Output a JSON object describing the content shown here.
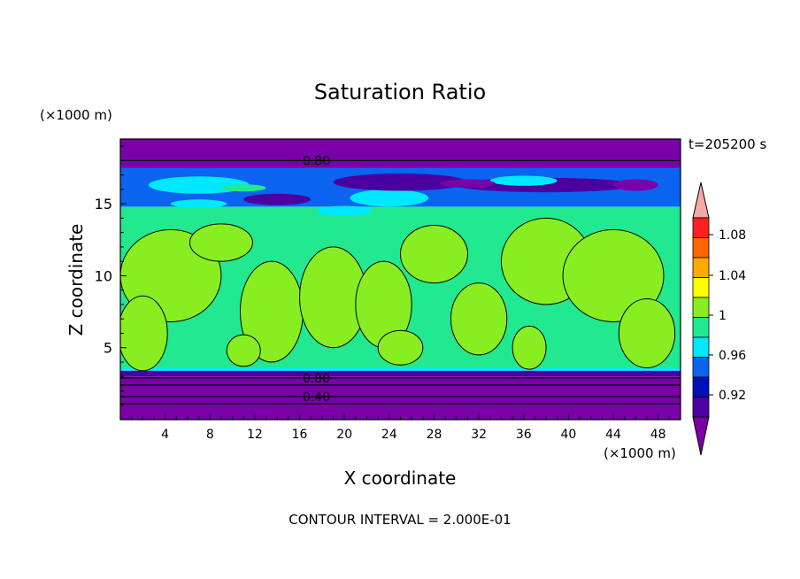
{
  "chart_data": {
    "type": "heatmap",
    "title": "Saturation Ratio",
    "xlabel": "X coordinate",
    "ylabel": "Z coordinate",
    "x_unit": "(×1000 m)",
    "y_unit": "(×1000 m)",
    "time_label": "t=205200 s",
    "footer": "CONTOUR INTERVAL = 2.000E-01",
    "xlim": [
      0,
      50
    ],
    "ylim": [
      0,
      19.5
    ],
    "x_ticks": [
      4,
      8,
      12,
      16,
      20,
      24,
      28,
      32,
      36,
      40,
      44,
      48
    ],
    "y_ticks": [
      5,
      10,
      15
    ],
    "colorbar": {
      "labels": [
        "1.08",
        "1.04",
        "1",
        "0.96",
        "0.92"
      ],
      "levels": [
        0.92,
        0.94,
        0.96,
        0.98,
        1.0,
        1.02,
        1.04,
        1.06,
        1.08,
        1.1
      ],
      "colors": [
        "#7a00a8",
        "#4b00a0",
        "#0010b8",
        "#0a64f0",
        "#00e8ff",
        "#22e890",
        "#88ee22",
        "#ffff00",
        "#ffaa00",
        "#ff6600",
        "#ff2020",
        "#f4a8a8"
      ]
    },
    "layers": [
      {
        "z0": 0.0,
        "z1": 3.0,
        "value": 0.6,
        "color": "#7a00a8"
      },
      {
        "z0": 3.0,
        "z1": 3.4,
        "value": 0.9,
        "color": "#4b00a0"
      },
      {
        "z0": 3.4,
        "z1": 3.6,
        "value": 0.97,
        "color": "#00e8ff"
      },
      {
        "z0": 3.6,
        "z1": 14.8,
        "value": 0.99,
        "color": "#22e890"
      },
      {
        "z0": 14.8,
        "z1": 17.5,
        "value": 0.95,
        "color": "#0a64f0"
      },
      {
        "z0": 17.5,
        "z1": 19.5,
        "value": 0.8,
        "color": "#7a00a8"
      }
    ],
    "contour_labels": [
      {
        "text": "0.80",
        "x": 17.5,
        "z": 18.0
      },
      {
        "text": "0.80",
        "x": 17.5,
        "z": 2.9
      },
      {
        "text": "0.40",
        "x": 17.5,
        "z": 1.6
      }
    ],
    "contour_lines_z": [
      18.0,
      2.9,
      2.4,
      1.6,
      1.1
    ],
    "patches_above_one": [
      {
        "x": 4.5,
        "z": 10.0,
        "rx": 4.5,
        "rz": 3.2
      },
      {
        "x": 2.0,
        "z": 6.0,
        "rx": 2.2,
        "rz": 2.6
      },
      {
        "x": 9.0,
        "z": 12.3,
        "rx": 2.8,
        "rz": 1.3
      },
      {
        "x": 13.5,
        "z": 7.5,
        "rx": 2.8,
        "rz": 3.5
      },
      {
        "x": 19.0,
        "z": 8.5,
        "rx": 3.0,
        "rz": 3.5
      },
      {
        "x": 23.5,
        "z": 8.0,
        "rx": 2.5,
        "rz": 3.0
      },
      {
        "x": 28.0,
        "z": 11.5,
        "rx": 3.0,
        "rz": 2.0
      },
      {
        "x": 32.0,
        "z": 7.0,
        "rx": 2.5,
        "rz": 2.5
      },
      {
        "x": 38.0,
        "z": 11.0,
        "rx": 4.0,
        "rz": 3.0
      },
      {
        "x": 44.0,
        "z": 10.0,
        "rx": 4.5,
        "rz": 3.2
      },
      {
        "x": 47.0,
        "z": 6.0,
        "rx": 2.5,
        "rz": 2.4
      },
      {
        "x": 36.5,
        "z": 5.0,
        "rx": 1.5,
        "rz": 1.5
      },
      {
        "x": 11.0,
        "z": 4.8,
        "rx": 1.5,
        "rz": 1.1
      },
      {
        "x": 25.0,
        "z": 5.0,
        "rx": 2.0,
        "rz": 1.2
      }
    ],
    "band_features": [
      {
        "x": 7.0,
        "z": 16.3,
        "rx": 4.5,
        "rz": 0.6,
        "color": "#00e8ff"
      },
      {
        "x": 11.0,
        "z": 16.1,
        "rx": 2.0,
        "rz": 0.25,
        "color": "#22e890"
      },
      {
        "x": 24.0,
        "z": 15.4,
        "rx": 3.5,
        "rz": 0.6,
        "color": "#00e8ff"
      },
      {
        "x": 25.0,
        "z": 16.5,
        "rx": 6.0,
        "rz": 0.6,
        "color": "#4b00a0"
      },
      {
        "x": 38.0,
        "z": 16.3,
        "rx": 8.0,
        "rz": 0.5,
        "color": "#4b00a0"
      },
      {
        "x": 14.0,
        "z": 15.3,
        "rx": 3.0,
        "rz": 0.4,
        "color": "#4b00a0"
      },
      {
        "x": 36.0,
        "z": 16.6,
        "rx": 3.0,
        "rz": 0.35,
        "color": "#00e8ff"
      },
      {
        "x": 46.0,
        "z": 16.3,
        "rx": 2.0,
        "rz": 0.4,
        "color": "#7a00a8"
      },
      {
        "x": 31.0,
        "z": 16.4,
        "rx": 2.5,
        "rz": 0.3,
        "color": "#7a00a8"
      },
      {
        "x": 20.0,
        "z": 14.5,
        "rx": 2.5,
        "rz": 0.35,
        "color": "#00e8ff"
      },
      {
        "x": 7.0,
        "z": 15.0,
        "rx": 2.5,
        "rz": 0.3,
        "color": "#00e8ff"
      }
    ]
  }
}
